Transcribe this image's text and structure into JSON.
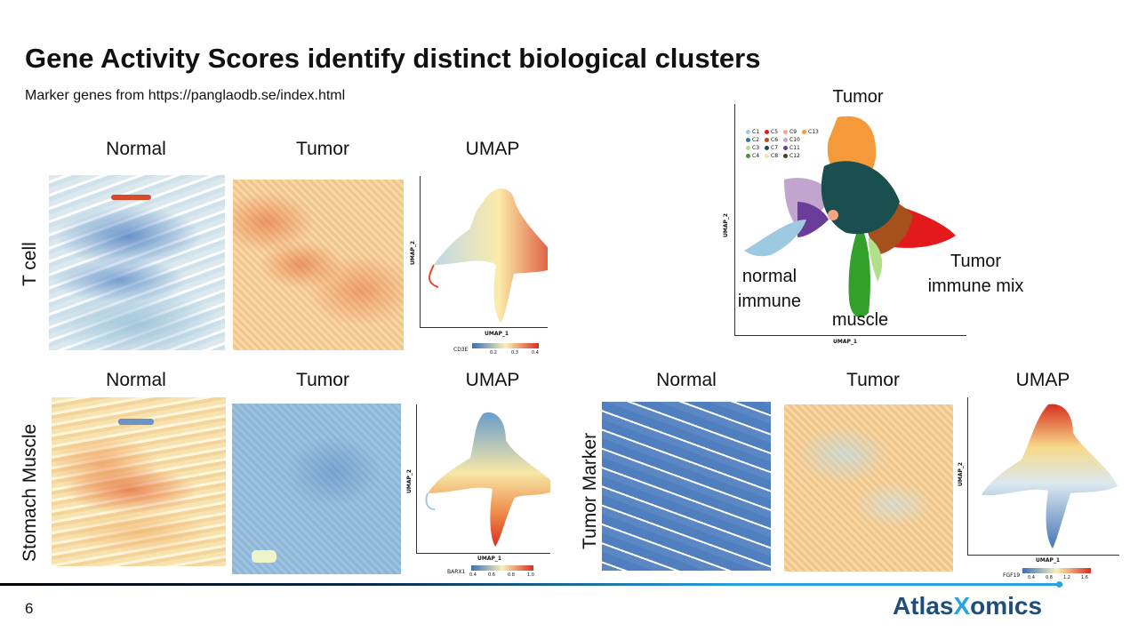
{
  "slide": {
    "title": "Gene Activity Scores identify distinct biological clusters",
    "subtitle": "Marker genes from https://panglaodb.se/index.html",
    "page_number": "6"
  },
  "headers": {
    "normal": "Normal",
    "tumor": "Tumor",
    "umap": "UMAP"
  },
  "rows": {
    "t_cell": "T cell",
    "stomach_muscle": "Stomach Muscle",
    "tumor_marker": "Tumor Marker"
  },
  "umap_axes": {
    "x": "UMAP_1",
    "y": "UMAP_2"
  },
  "colorbars": {
    "cd3e": {
      "gene": "CD3E",
      "ticks": [
        "0.2",
        "0.3",
        "0.4"
      ]
    },
    "barx1": {
      "gene": "BARX1",
      "ticks": [
        "0.4",
        "0.6",
        "0.8",
        "1.0"
      ]
    },
    "fgf19": {
      "gene": "FGF19",
      "ticks": [
        "0.4",
        "0.8",
        "1.2",
        "1.6"
      ]
    }
  },
  "cluster_plot": {
    "annotations": {
      "tumor": "Tumor",
      "normal_immune": "normal\nimmune",
      "muscle": "muscle",
      "tumor_immune_mix": "Tumor\nimmune mix"
    },
    "legend": [
      {
        "label": "C1",
        "color": "#9ecae1"
      },
      {
        "label": "C2",
        "color": "#1f78b4"
      },
      {
        "label": "C3",
        "color": "#b2df8a"
      },
      {
        "label": "C4",
        "color": "#33a02c"
      },
      {
        "label": "C5",
        "color": "#e31a1c"
      },
      {
        "label": "C6",
        "color": "#a6511c"
      },
      {
        "label": "C7",
        "color": "#1b4f4f"
      },
      {
        "label": "C8",
        "color": "#f5e79e"
      },
      {
        "label": "C9",
        "color": "#f4a582"
      },
      {
        "label": "C10",
        "color": "#c2a5cf"
      },
      {
        "label": "C11",
        "color": "#6a3d9a"
      },
      {
        "label": "C12",
        "color": "#4d3b12"
      },
      {
        "label": "C13",
        "color": "#f59a3a"
      }
    ]
  },
  "logo": {
    "part1": "Atlas",
    "part2": "X",
    "part3": "omics"
  },
  "colors": {
    "accent": "#29a3dd",
    "brand": "#1f4e79",
    "low": "#3b6fb6",
    "mid": "#f7f1b8",
    "high": "#d7301f"
  }
}
